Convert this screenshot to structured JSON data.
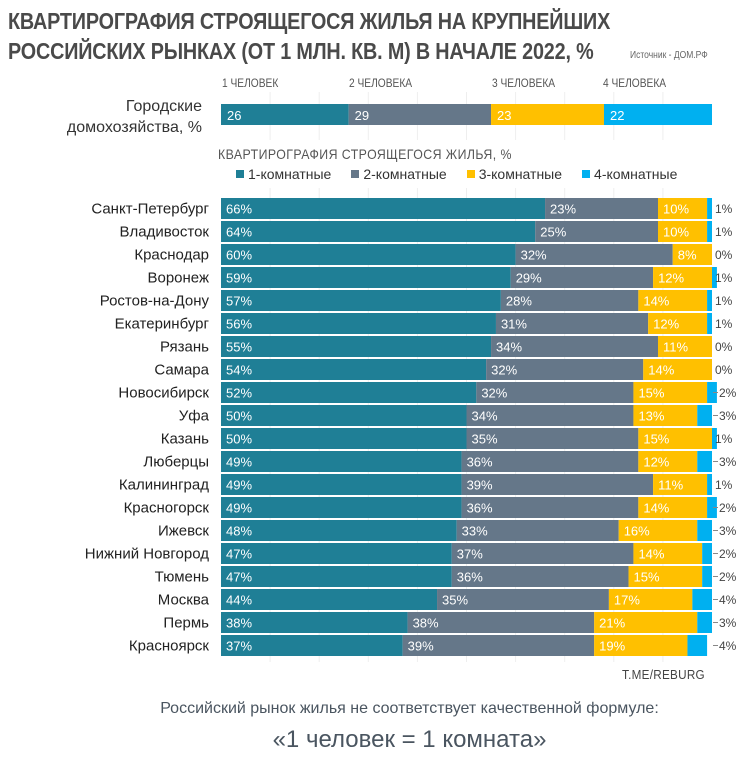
{
  "chart_data": {
    "type": "bar",
    "orientation": "horizontal-stacked-100",
    "title_line1": "КВАРТИРОГРАФИЯ СТРОЯЩЕГОСЯ ЖИЛЬЯ НА КРУПНЕЙШИХ",
    "title_line2": "РОССИЙСКИХ РЫНКАХ (ОТ 1 МЛН. КВ. М) В НАЧАЛЕ 2022, %",
    "source": "Источник - ДОМ.РФ",
    "households": {
      "label": "Городские домохозяйства, %",
      "categories": [
        "1 ЧЕЛОВЕК",
        "2 ЧЕЛОВЕКА",
        "3 ЧЕЛОВЕКА",
        "4 ЧЕЛОВЕКА"
      ],
      "values": [
        26,
        29,
        23,
        22
      ]
    },
    "subtitle": "КВАРТИРОГРАФИЯ СТРОЯЩЕГОСЯ ЖИЛЬЯ, %",
    "legend_position": "top",
    "series_names": [
      "1-комнатные",
      "2-комнатные",
      "3-комнатные",
      "4-комнатные"
    ],
    "colors": [
      "#1f7f96",
      "#657789",
      "#ffc000",
      "#00b0f0"
    ],
    "categories": [
      "Санкт-Петербург",
      "Владивосток",
      "Краснодар",
      "Воронеж",
      "Ростов-на-Дону",
      "Екатеринбург",
      "Рязань",
      "Самара",
      "Новосибирск",
      "Уфа",
      "Казань",
      "Люберцы",
      "Калининград",
      "Красногорск",
      "Ижевск",
      "Нижний Новгород",
      "Тюмень",
      "Москва",
      "Пермь",
      "Красноярск"
    ],
    "series": [
      {
        "name": "1-комнатные",
        "values": [
          66,
          64,
          60,
          59,
          57,
          56,
          55,
          54,
          52,
          50,
          50,
          49,
          49,
          49,
          48,
          47,
          47,
          44,
          38,
          37
        ]
      },
      {
        "name": "2-комнатные",
        "values": [
          23,
          25,
          32,
          29,
          28,
          31,
          34,
          32,
          32,
          34,
          35,
          36,
          39,
          36,
          33,
          37,
          36,
          35,
          38,
          39
        ]
      },
      {
        "name": "3-комнатные",
        "values": [
          10,
          10,
          8,
          12,
          14,
          12,
          11,
          14,
          15,
          13,
          15,
          12,
          11,
          14,
          16,
          14,
          15,
          17,
          21,
          19
        ]
      },
      {
        "name": "4-комнатные",
        "values": [
          1,
          1,
          0,
          1,
          1,
          1,
          0,
          0,
          2,
          3,
          1,
          3,
          1,
          2,
          3,
          2,
          2,
          4,
          3,
          4
        ]
      }
    ],
    "xlim": [
      0,
      100
    ],
    "grid": true
  },
  "watermark": "T.ME/REBURG",
  "footer_line1": "Российский рынок жилья не соответствует качественной формуле:",
  "footer_line2": "«1 человек = 1 комната»"
}
